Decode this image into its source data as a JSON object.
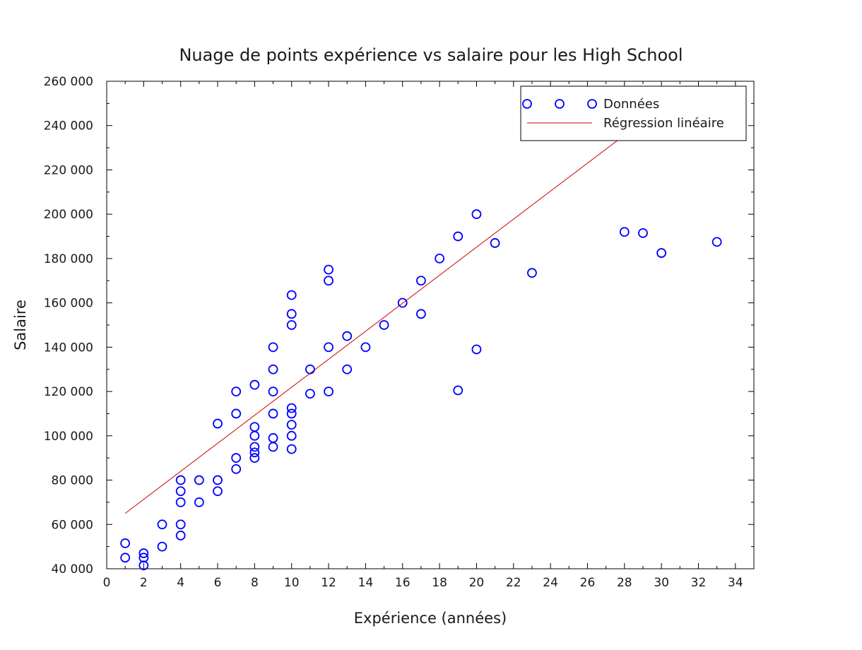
{
  "chart_data": {
    "type": "scatter",
    "title": "Nuage de points expérience vs salaire pour les High School",
    "xlabel": "Expérience (années)",
    "ylabel": "Salaire",
    "xlim": [
      0,
      35
    ],
    "ylim": [
      40000,
      260000
    ],
    "x_ticks": [
      "0",
      "2",
      "4",
      "6",
      "8",
      "10",
      "12",
      "14",
      "16",
      "18",
      "20",
      "22",
      "24",
      "26",
      "28",
      "30",
      "32",
      "34"
    ],
    "y_ticks": [
      "40 000",
      "60 000",
      "80 000",
      "100 000",
      "120 000",
      "140 000",
      "160 000",
      "180 000",
      "200 000",
      "220 000",
      "240 000",
      "260 000"
    ],
    "grid": false,
    "legend_position": "top-right",
    "series": [
      {
        "name": "Données",
        "kind": "markers",
        "marker": "circle",
        "color": "#0000ff",
        "points": [
          [
            1,
            51500
          ],
          [
            1,
            45000
          ],
          [
            2,
            47000
          ],
          [
            2,
            45000
          ],
          [
            2,
            41500
          ],
          [
            3,
            60000
          ],
          [
            3,
            50000
          ],
          [
            4,
            80000
          ],
          [
            4,
            75000
          ],
          [
            4,
            70000
          ],
          [
            4,
            60000
          ],
          [
            4,
            55000
          ],
          [
            5,
            80000
          ],
          [
            5,
            70000
          ],
          [
            6,
            105500
          ],
          [
            6,
            80000
          ],
          [
            6,
            75000
          ],
          [
            7,
            120000
          ],
          [
            7,
            110000
          ],
          [
            7,
            90000
          ],
          [
            7,
            85000
          ],
          [
            8,
            123000
          ],
          [
            8,
            104000
          ],
          [
            8,
            100000
          ],
          [
            8,
            95000
          ],
          [
            8,
            92500
          ],
          [
            8,
            90000
          ],
          [
            9,
            140000
          ],
          [
            9,
            130000
          ],
          [
            9,
            120000
          ],
          [
            9,
            110000
          ],
          [
            9,
            99000
          ],
          [
            9,
            95000
          ],
          [
            10,
            163500
          ],
          [
            10,
            155000
          ],
          [
            10,
            150000
          ],
          [
            10,
            112500
          ],
          [
            10,
            110000
          ],
          [
            10,
            105000
          ],
          [
            10,
            100000
          ],
          [
            10,
            94000
          ],
          [
            11,
            130000
          ],
          [
            11,
            119000
          ],
          [
            12,
            175000
          ],
          [
            12,
            170000
          ],
          [
            12,
            140000
          ],
          [
            12,
            120000
          ],
          [
            13,
            145000
          ],
          [
            13,
            130000
          ],
          [
            14,
            140000
          ],
          [
            15,
            150000
          ],
          [
            16,
            160000
          ],
          [
            17,
            170000
          ],
          [
            17,
            155000
          ],
          [
            18,
            180000
          ],
          [
            19,
            190000
          ],
          [
            19,
            120500
          ],
          [
            20,
            200000
          ],
          [
            20,
            139000
          ],
          [
            21,
            187000
          ],
          [
            23,
            173500
          ],
          [
            28,
            192000
          ],
          [
            29,
            191500
          ],
          [
            30,
            182500
          ],
          [
            33,
            187500
          ]
        ]
      },
      {
        "name": "Régression linéaire",
        "kind": "line",
        "color": "#cc0000",
        "points": [
          [
            1,
            65000
          ],
          [
            29,
            242000
          ]
        ]
      }
    ]
  }
}
